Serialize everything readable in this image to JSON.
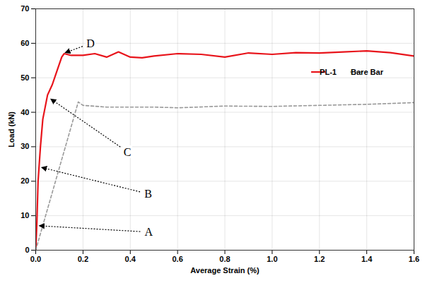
{
  "chart_data": {
    "type": "line",
    "x_label": "Average Strain (%)",
    "y_label": "Load (kN)",
    "xlim": [
      0,
      1.6
    ],
    "xticks": [
      {
        "value": 0,
        "label": "0.0"
      },
      0.2,
      0.4,
      0.6,
      0.8,
      {
        "value": 1,
        "label": "1.0"
      },
      1.2,
      1.4,
      1.6
    ],
    "ylim": [
      0,
      70
    ],
    "yticks": [
      0,
      10,
      20,
      30,
      40,
      50,
      60,
      70
    ],
    "grid": true,
    "legend": "right",
    "series": [
      {
        "name": "PL-1",
        "color": "#e8141b",
        "line_style": "solid",
        "x": [
          0,
          0.005,
          0.01,
          0.02,
          0.03,
          0.05,
          0.07,
          0.09,
          0.11,
          0.12,
          0.15,
          0.2,
          0.25,
          0.3,
          0.35,
          0.4,
          0.45,
          0.5,
          0.6,
          0.7,
          0.8,
          0.9,
          1.0,
          1.1,
          1.2,
          1.3,
          1.4,
          1.5,
          1.6
        ],
        "values": [
          0,
          8,
          20,
          30,
          38,
          45,
          48,
          52,
          56,
          57,
          56.5,
          56.5,
          57,
          56,
          57.5,
          56,
          55.8,
          56.3,
          57,
          56.8,
          56,
          57.2,
          56.8,
          57.3,
          57.2,
          57.5,
          57.8,
          57.3,
          56.3
        ]
      },
      {
        "name": "Bare Bar",
        "color": "#999999",
        "line_style": "dashed",
        "x": [
          0,
          0.18,
          0.2,
          0.3,
          0.5,
          0.6,
          0.8,
          1.0,
          1.2,
          1.4,
          1.6
        ],
        "values": [
          0,
          43,
          42,
          41.5,
          41.5,
          41.3,
          41.8,
          41.7,
          42,
          42.3,
          42.8
        ]
      }
    ],
    "annotations": [
      {
        "text": "A",
        "x": 0.01,
        "y": 7
      },
      {
        "text": "B",
        "x": 0.02,
        "y": 24
      },
      {
        "text": "C",
        "x": 0.06,
        "y": 44
      },
      {
        "text": "D",
        "x": 0.12,
        "y": 57
      }
    ]
  }
}
